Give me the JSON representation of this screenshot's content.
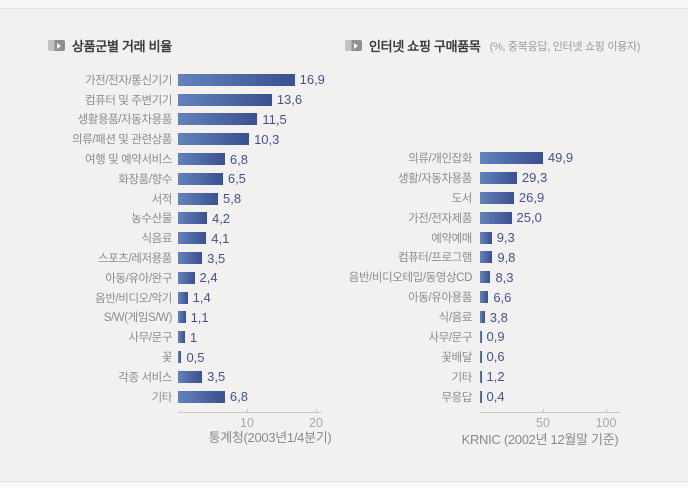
{
  "page": {
    "background": "#f2f1ef",
    "outer_background": "#f7f7f6"
  },
  "colors": {
    "bar_gradient_start": "#6283bd",
    "bar_gradient_end": "#3b508f",
    "value_text": "#42538f",
    "category_text": "#8c8c8c",
    "title_text": "#3c3c3c",
    "subtitle_text": "#9b9a98",
    "axis_line": "#c9c8c6",
    "tick_text": "#a9a8a6",
    "source_text": "#8b8a88",
    "bullet_icon": "#8f8f8e"
  },
  "icons": {
    "bullet": "arrow-bullet-icon"
  },
  "chart_data": [
    {
      "type": "bar",
      "orientation": "horizontal",
      "title": "상품군별 거래 비율",
      "subtitle": "",
      "source": "통계청(2003년1/4분기)",
      "xlim": [
        0,
        20
      ],
      "ticks": [
        10,
        20
      ],
      "tick_labels": [
        "10",
        "20"
      ],
      "grid": false,
      "legend": false,
      "categories": [
        "가전/전자/통신기기",
        "컴퓨터 및 주변기기",
        "생활용품/자동차용품",
        "의류/패션 및 관련상품",
        "여행 및 예약서비스",
        "화장품/향수",
        "서적",
        "농수산물",
        "식음료",
        "스포츠/레저용품",
        "아동/유아/완구",
        "음반/비디오/악기",
        "S/W(게임S/W)",
        "사무/문구",
        "꽃",
        "각종 서비스",
        "기타"
      ],
      "values": [
        16.9,
        13.6,
        11.5,
        10.3,
        6.8,
        6.5,
        5.8,
        4.2,
        4.1,
        3.5,
        2.4,
        1.4,
        1.1,
        1,
        0.5,
        3.5,
        6.8
      ],
      "display_values": [
        "16,9",
        "13,6",
        "11,5",
        "10,3",
        "6,8",
        "6,5",
        "5,8",
        "4,2",
        "4,1",
        "3,5",
        "2,4",
        "1,4",
        "1,1",
        "1",
        "0,5",
        "3,5",
        "6,8"
      ]
    },
    {
      "type": "bar",
      "orientation": "horizontal",
      "title": "인터넷 쇼핑 구매품목",
      "subtitle": "(%, 중복응답, 인터넷 쇼핑 이용자)",
      "source": "KRNIC (2002년 12월말 기준)",
      "xlim": [
        0,
        100
      ],
      "ticks": [
        50,
        100
      ],
      "tick_labels": [
        "50",
        "100"
      ],
      "grid": false,
      "legend": false,
      "categories": [
        "의류/개인잡화",
        "생활/자동차용품",
        "도서",
        "가전/전자제품",
        "예약예매",
        "컴퓨터/프로그램",
        "음반/비디오테입/동영상CD",
        "아동/유아용품",
        "식/음료",
        "사무/문구",
        "꽃배달",
        "기타",
        "무응답"
      ],
      "values": [
        49.9,
        29.3,
        26.9,
        25.0,
        9.3,
        9.8,
        8.3,
        6.6,
        3.8,
        0.9,
        0.6,
        1.2,
        0.4
      ],
      "display_values": [
        "49,9",
        "29,3",
        "26,9",
        "25,0",
        "9,3",
        "9,8",
        "8,3",
        "6,6",
        "3,8",
        "0,9",
        "0,6",
        "1,2",
        "0,4"
      ]
    }
  ]
}
